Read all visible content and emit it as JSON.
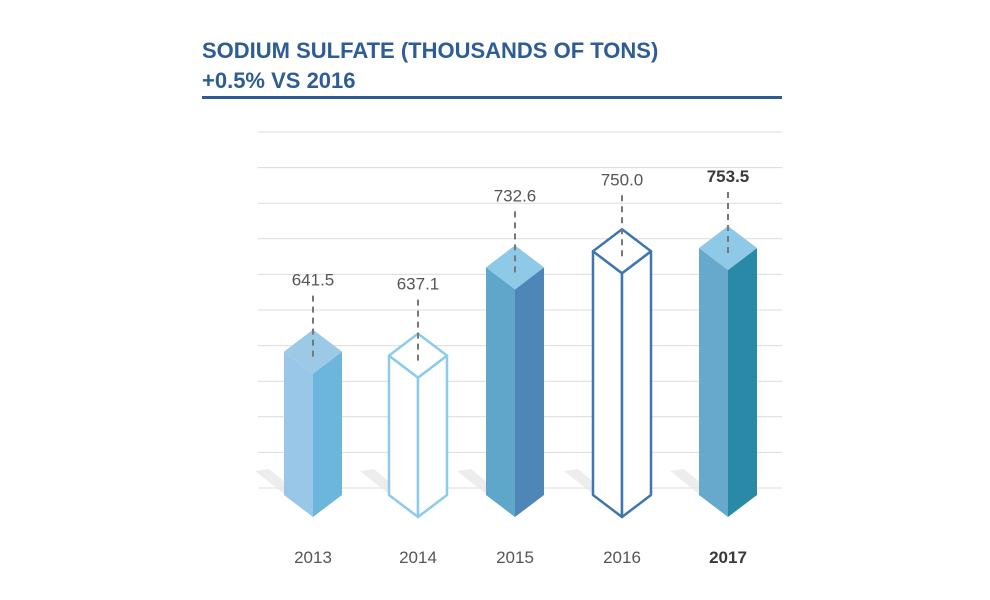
{
  "chart_data": {
    "type": "bar",
    "title": "SODIUM SULFATE (THOUSANDS OF TONS)",
    "subtitle": "+0.5% VS 2016",
    "categories": [
      "2013",
      "2014",
      "2015",
      "2016",
      "2017"
    ],
    "values": [
      641.5,
      637.1,
      732.6,
      750.0,
      753.5
    ],
    "value_labels": [
      "641.5",
      "637.1",
      "732.6",
      "750.0",
      "753.5"
    ],
    "highlight_index": 4,
    "styles": [
      "solid",
      "outline",
      "solid",
      "outline",
      "solid"
    ],
    "colors": [
      {
        "top": "#9cc9e6",
        "left": "#98c7e7",
        "right": "#6cb6de",
        "stroke": "#6cb6de"
      },
      {
        "top": "#ffffff",
        "left": "#ffffff",
        "right": "#ffffff",
        "stroke": "#8ccbe9"
      },
      {
        "top": "#8ec9e8",
        "left": "#5fa6cb",
        "right": "#4f86b8",
        "stroke": "#4f86b8"
      },
      {
        "top": "#ffffff",
        "left": "#ffffff",
        "right": "#ffffff",
        "stroke": "#3f77ad"
      },
      {
        "top": "#8ec9e8",
        "left": "#67a8cd",
        "right": "#2b89a8",
        "stroke": "#2b89a8"
      }
    ],
    "title_color": "#2e5c95",
    "grid": true,
    "xlabel": "",
    "ylabel": ""
  }
}
